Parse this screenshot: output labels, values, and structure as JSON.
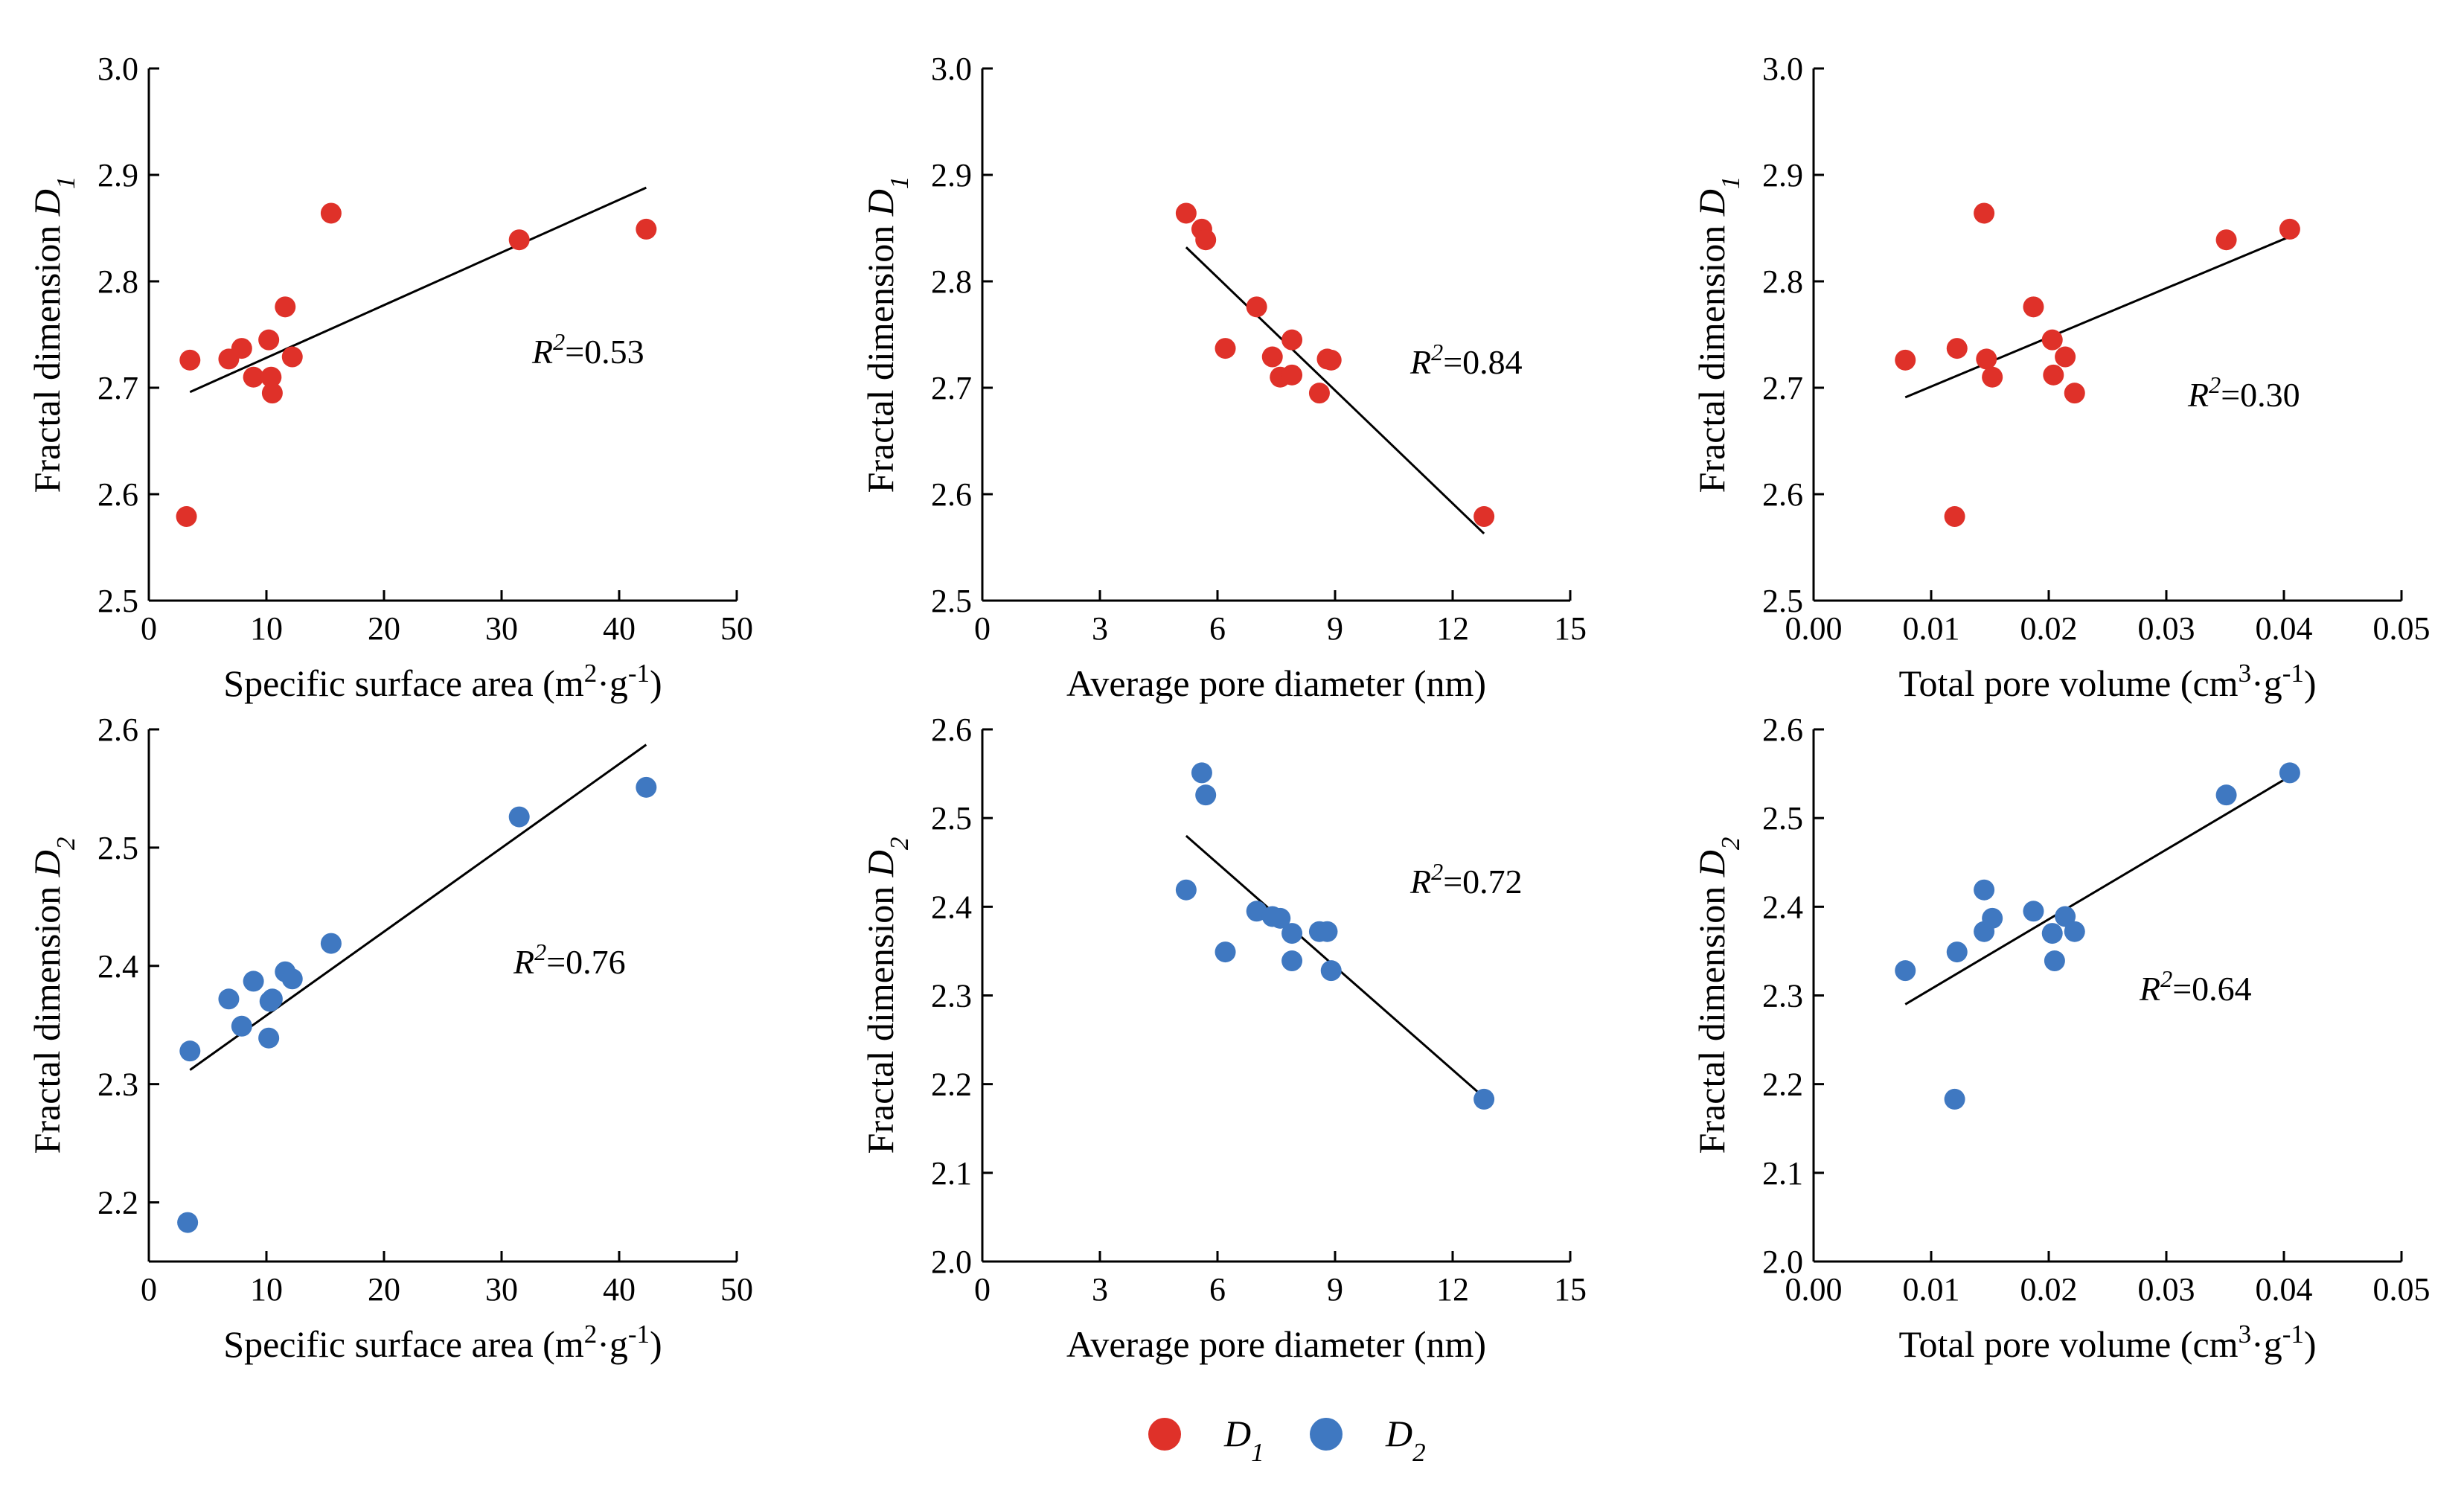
{
  "figure": {
    "legend": [
      {
        "label": "D",
        "sub": "1",
        "color": "#df3129"
      },
      {
        "label": "D",
        "sub": "2",
        "color": "#3f78c1"
      }
    ]
  },
  "chart_data": [
    {
      "type": "scatter",
      "id": "a",
      "series_color": "#df3129",
      "xlabel": "Specific surface area (m2·g-1)",
      "ylabel": "Fractal dimension D1",
      "xlim": [
        0,
        50
      ],
      "ylim": [
        2.5,
        3.0
      ],
      "xticks": [
        "0",
        "10",
        "20",
        "30",
        "40",
        "50"
      ],
      "yticks": [
        "2.5",
        "2.6",
        "2.7",
        "2.8",
        "2.9",
        "3.0"
      ],
      "x": [
        3.5,
        3.2,
        6.8,
        7.9,
        8.9,
        10.2,
        10.4,
        10.5,
        11.6,
        12.2,
        15.5,
        31.5,
        42.3
      ],
      "y": [
        2.726,
        2.579,
        2.727,
        2.737,
        2.71,
        2.745,
        2.71,
        2.695,
        2.776,
        2.729,
        2.864,
        2.839,
        2.849
      ],
      "trend": {
        "x": [
          3.5,
          42.3
        ],
        "y": [
          2.696,
          2.888
        ]
      },
      "r2": "=0.53"
    },
    {
      "type": "scatter",
      "id": "b",
      "series_color": "#df3129",
      "xlabel": "Average pore diameter (nm)",
      "ylabel": "Fractal dimension D1",
      "xlim": [
        0,
        15
      ],
      "ylim": [
        2.5,
        3.0
      ],
      "xticks": [
        "0",
        "3",
        "6",
        "9",
        "12",
        "15"
      ],
      "yticks": [
        "2.5",
        "2.6",
        "2.7",
        "2.8",
        "2.9",
        "3.0"
      ],
      "x": [
        5.2,
        5.6,
        5.7,
        6.2,
        7.0,
        7.4,
        7.6,
        7.9,
        7.9,
        8.6,
        8.8,
        8.9,
        12.8
      ],
      "y": [
        2.864,
        2.849,
        2.839,
        2.737,
        2.776,
        2.729,
        2.71,
        2.745,
        2.712,
        2.695,
        2.727,
        2.726,
        2.579
      ],
      "trend": {
        "x": [
          5.2,
          12.8
        ],
        "y": [
          2.832,
          2.563
        ]
      },
      "r2": "=0.84"
    },
    {
      "type": "scatter",
      "id": "c",
      "series_color": "#df3129",
      "xlabel": "Total pore volume (cm3·g-1)",
      "ylabel": "Fractal dimension D1",
      "xlim": [
        0,
        0.05
      ],
      "ylim": [
        2.5,
        3.0
      ],
      "xticks": [
        "0.00",
        "0.01",
        "0.02",
        "0.03",
        "0.04",
        "0.05"
      ],
      "yticks": [
        "2.5",
        "2.6",
        "2.7",
        "2.8",
        "2.9",
        "3.0"
      ],
      "x": [
        0.0078,
        0.012,
        0.0122,
        0.0145,
        0.0147,
        0.0152,
        0.0187,
        0.0203,
        0.0204,
        0.0214,
        0.0222,
        0.0351,
        0.0405
      ],
      "y": [
        2.726,
        2.579,
        2.737,
        2.864,
        2.727,
        2.71,
        2.776,
        2.745,
        2.712,
        2.729,
        2.695,
        2.839,
        2.849
      ],
      "trend": {
        "x": [
          0.0078,
          0.0405
        ],
        "y": [
          2.691,
          2.842
        ]
      },
      "r2": "=0.30"
    },
    {
      "type": "scatter",
      "id": "d",
      "series_color": "#3f78c1",
      "xlabel": "Specific surface area (m2·g-1)",
      "ylabel": "Fractal dimension D2",
      "xlim": [
        0,
        50
      ],
      "ylim": [
        2.15,
        2.6
      ],
      "xticks": [
        "0",
        "10",
        "20",
        "30",
        "40",
        "50"
      ],
      "yticks": [
        "2.2",
        "2.3",
        "2.4",
        "2.5",
        "2.6"
      ],
      "x": [
        3.5,
        3.3,
        6.8,
        7.9,
        8.9,
        10.2,
        10.3,
        10.5,
        11.6,
        12.2,
        15.5,
        31.5,
        42.3
      ],
      "y": [
        2.328,
        2.183,
        2.372,
        2.349,
        2.387,
        2.339,
        2.37,
        2.372,
        2.395,
        2.389,
        2.419,
        2.526,
        2.551
      ],
      "trend": {
        "x": [
          3.5,
          42.3
        ],
        "y": [
          2.312,
          2.587
        ]
      },
      "r2": "=0.76"
    },
    {
      "type": "scatter",
      "id": "e",
      "series_color": "#3f78c1",
      "xlabel": "Average pore diameter (nm)",
      "ylabel": "Fractal dimension D2",
      "xlim": [
        0,
        15
      ],
      "ylim": [
        2.0,
        2.6
      ],
      "xticks": [
        "0",
        "3",
        "6",
        "9",
        "12",
        "15"
      ],
      "yticks": [
        "2.0",
        "2.1",
        "2.2",
        "2.3",
        "2.4",
        "2.5",
        "2.6"
      ],
      "x": [
        5.2,
        5.6,
        5.7,
        6.2,
        7.0,
        7.4,
        7.6,
        7.9,
        7.9,
        8.6,
        8.8,
        8.9,
        12.8
      ],
      "y": [
        2.419,
        2.551,
        2.526,
        2.349,
        2.395,
        2.389,
        2.387,
        2.339,
        2.37,
        2.372,
        2.372,
        2.328,
        2.183
      ],
      "trend": {
        "x": [
          5.2,
          12.8
        ],
        "y": [
          2.48,
          2.185
        ]
      },
      "r2": "=0.72"
    },
    {
      "type": "scatter",
      "id": "f",
      "series_color": "#3f78c1",
      "xlabel": "Total pore volume (cm3·g-1)",
      "ylabel": "Fractal dimension D2",
      "xlim": [
        0,
        0.05
      ],
      "ylim": [
        2.0,
        2.6
      ],
      "xticks": [
        "0.00",
        "0.01",
        "0.02",
        "0.03",
        "0.04",
        "0.05"
      ],
      "yticks": [
        "2.0",
        "2.1",
        "2.2",
        "2.3",
        "2.4",
        "2.5",
        "2.6"
      ],
      "x": [
        0.0078,
        0.012,
        0.0122,
        0.0145,
        0.0145,
        0.0152,
        0.0187,
        0.0203,
        0.0205,
        0.0214,
        0.0222,
        0.0351,
        0.0405
      ],
      "y": [
        2.328,
        2.183,
        2.349,
        2.419,
        2.372,
        2.387,
        2.395,
        2.37,
        2.339,
        2.389,
        2.372,
        2.526,
        2.551
      ],
      "trend": {
        "x": [
          0.0078,
          0.0405
        ],
        "y": [
          2.29,
          2.547
        ]
      },
      "r2": "=0.64"
    }
  ]
}
